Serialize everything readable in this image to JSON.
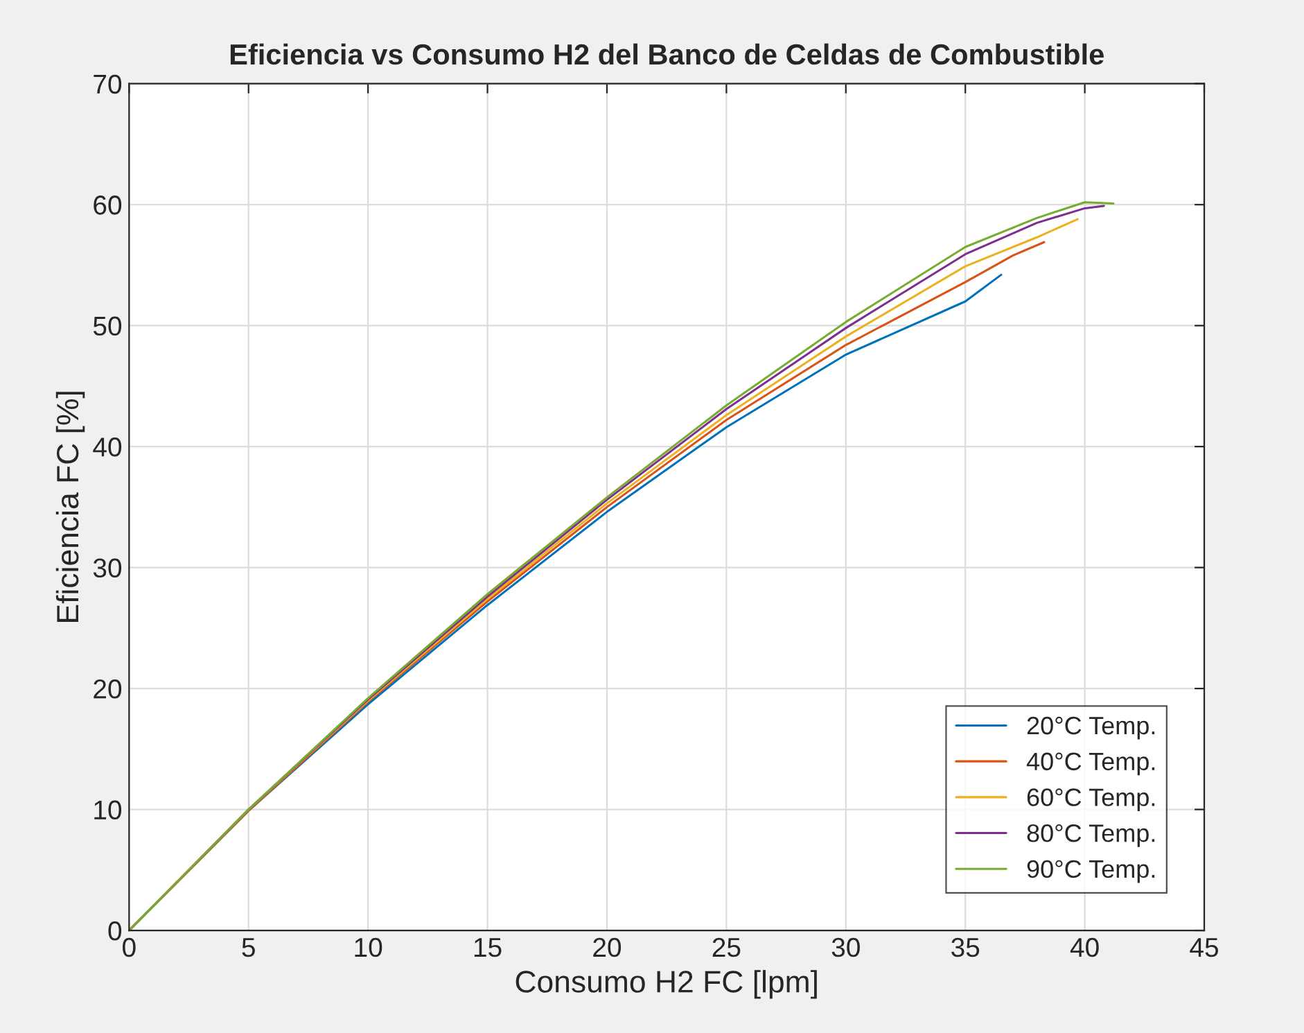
{
  "chart_data": {
    "type": "line",
    "title": "Eficiencia vs Consumo H2 del Banco de Celdas de Combustible",
    "xlabel": "Consumo H2 FC [lpm]",
    "ylabel": "Eficiencia FC [%]",
    "xlim": [
      0,
      45
    ],
    "ylim": [
      0,
      70
    ],
    "xticks": [
      0,
      5,
      10,
      15,
      20,
      25,
      30,
      35,
      40,
      45
    ],
    "yticks": [
      0,
      10,
      20,
      30,
      40,
      50,
      60,
      70
    ],
    "grid": true,
    "legend": "bottom right",
    "series": [
      {
        "name": "20°C Temp.",
        "color": "#0072bd",
        "x": [
          0,
          5,
          10,
          15,
          20,
          25,
          30,
          35,
          36.5
        ],
        "values": [
          0,
          9.9,
          18.7,
          26.9,
          34.6,
          41.6,
          47.6,
          52.0,
          54.2
        ]
      },
      {
        "name": "40°C Temp.",
        "color": "#d95319",
        "x": [
          0,
          5,
          10,
          15,
          20,
          25,
          30,
          35,
          37,
          38.3
        ],
        "values": [
          0,
          9.9,
          18.9,
          27.2,
          35.0,
          42.2,
          48.4,
          53.6,
          55.8,
          56.9
        ]
      },
      {
        "name": "60°C Temp.",
        "color": "#edb120",
        "x": [
          0,
          5,
          10,
          15,
          20,
          25,
          30,
          35,
          38,
          39.7
        ],
        "values": [
          0,
          10,
          19,
          27.4,
          35.3,
          42.6,
          49.1,
          54.9,
          57.3,
          58.8
        ]
      },
      {
        "name": "80°C Temp.",
        "color": "#7e2f8e",
        "x": [
          0,
          5,
          10,
          15,
          20,
          25,
          30,
          35,
          38,
          40,
          40.8
        ],
        "values": [
          0,
          10,
          19.1,
          27.6,
          35.6,
          43.1,
          49.8,
          55.9,
          58.5,
          59.7,
          59.9
        ]
      },
      {
        "name": "90°C Temp.",
        "color": "#77ac30",
        "x": [
          0,
          5,
          10,
          15,
          20,
          25,
          30,
          35,
          38,
          40,
          41.2
        ],
        "values": [
          0,
          10,
          19.2,
          27.8,
          35.8,
          43.4,
          50.3,
          56.5,
          58.9,
          60.2,
          60.1
        ]
      }
    ]
  }
}
